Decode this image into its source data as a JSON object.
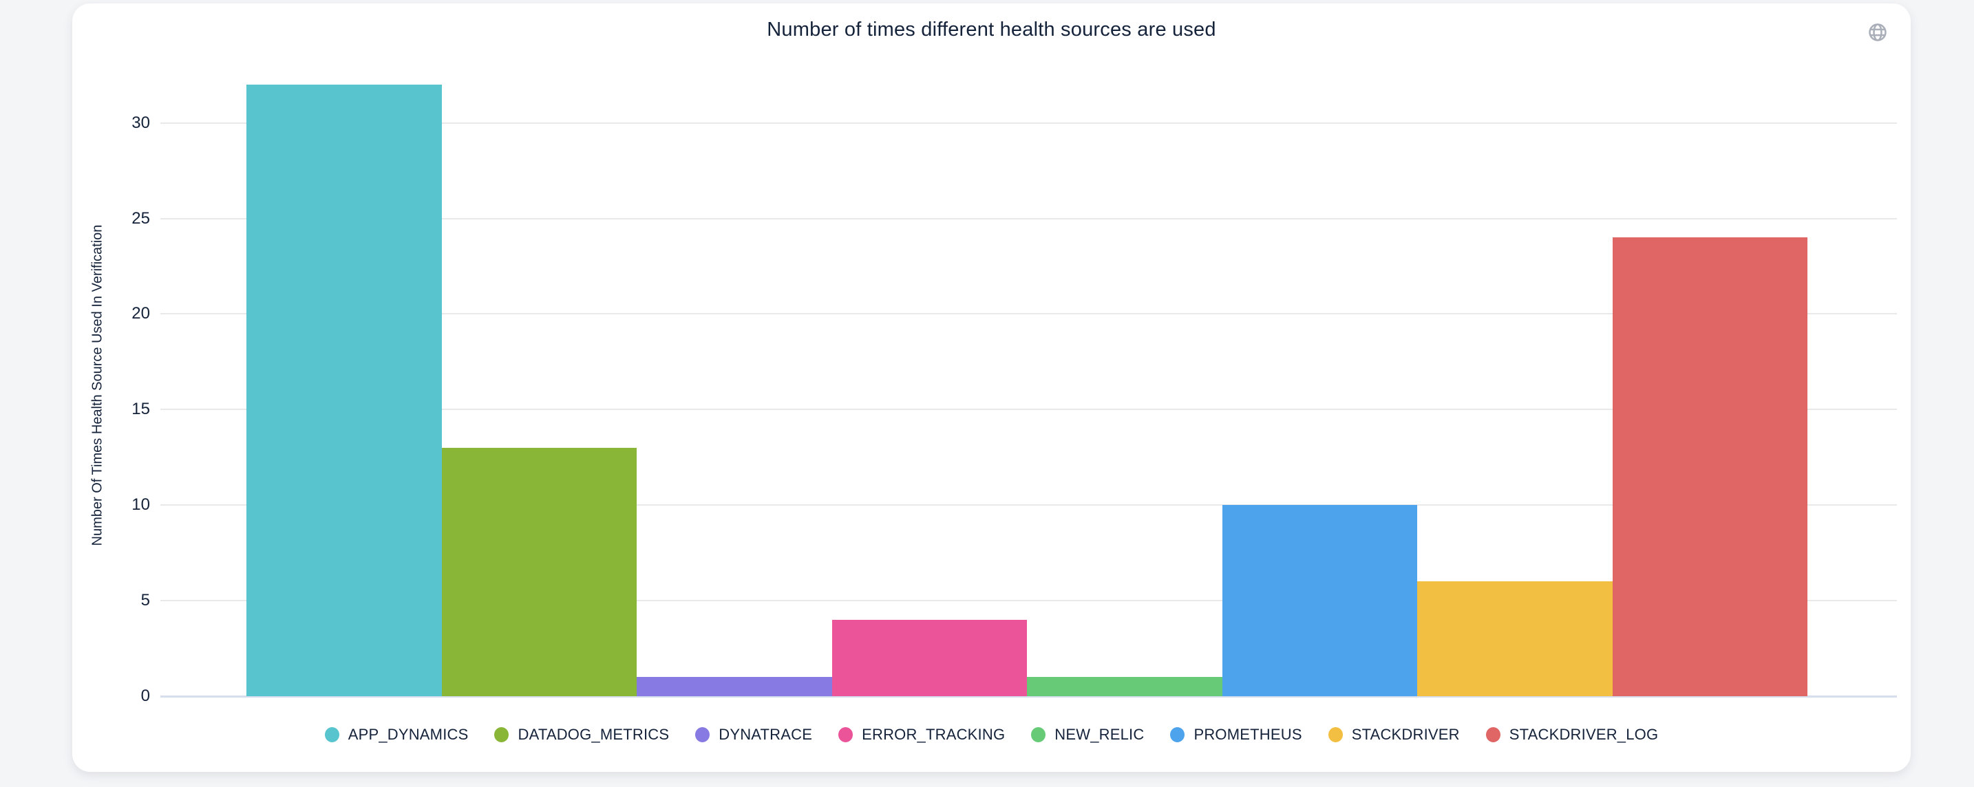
{
  "page": {
    "background_color": "#f4f5f7"
  },
  "card": {
    "background_color": "#ffffff"
  },
  "header": {
    "title": "Number of times different health sources are used",
    "globe_icon_color": "#a9aeb8"
  },
  "chart_data": {
    "type": "bar",
    "title": "Number of times different health sources are used",
    "xlabel": "",
    "ylabel": "Number Of Times Health Source Used In Verification",
    "ylim": [
      0,
      33
    ],
    "yticks": [
      0,
      5,
      10,
      15,
      20,
      25,
      30
    ],
    "grid": true,
    "legend_position": "bottom",
    "categories": [
      "APP_DYNAMICS",
      "DATADOG_METRICS",
      "DYNATRACE",
      "ERROR_TRACKING",
      "NEW_RELIC",
      "PROMETHEUS",
      "STACKDRIVER",
      "STACKDRIVER_LOG"
    ],
    "values": [
      32,
      13,
      1,
      4,
      1,
      10,
      6,
      24
    ],
    "colors": [
      "#58c4ce",
      "#8ab638",
      "#877ae3",
      "#ec549a",
      "#66ca77",
      "#4da3ec",
      "#f3bf42",
      "#e06666"
    ],
    "text_color": "#14223a",
    "gridline_color": "#e9e9e9",
    "baseline_color": "#d6dded"
  }
}
